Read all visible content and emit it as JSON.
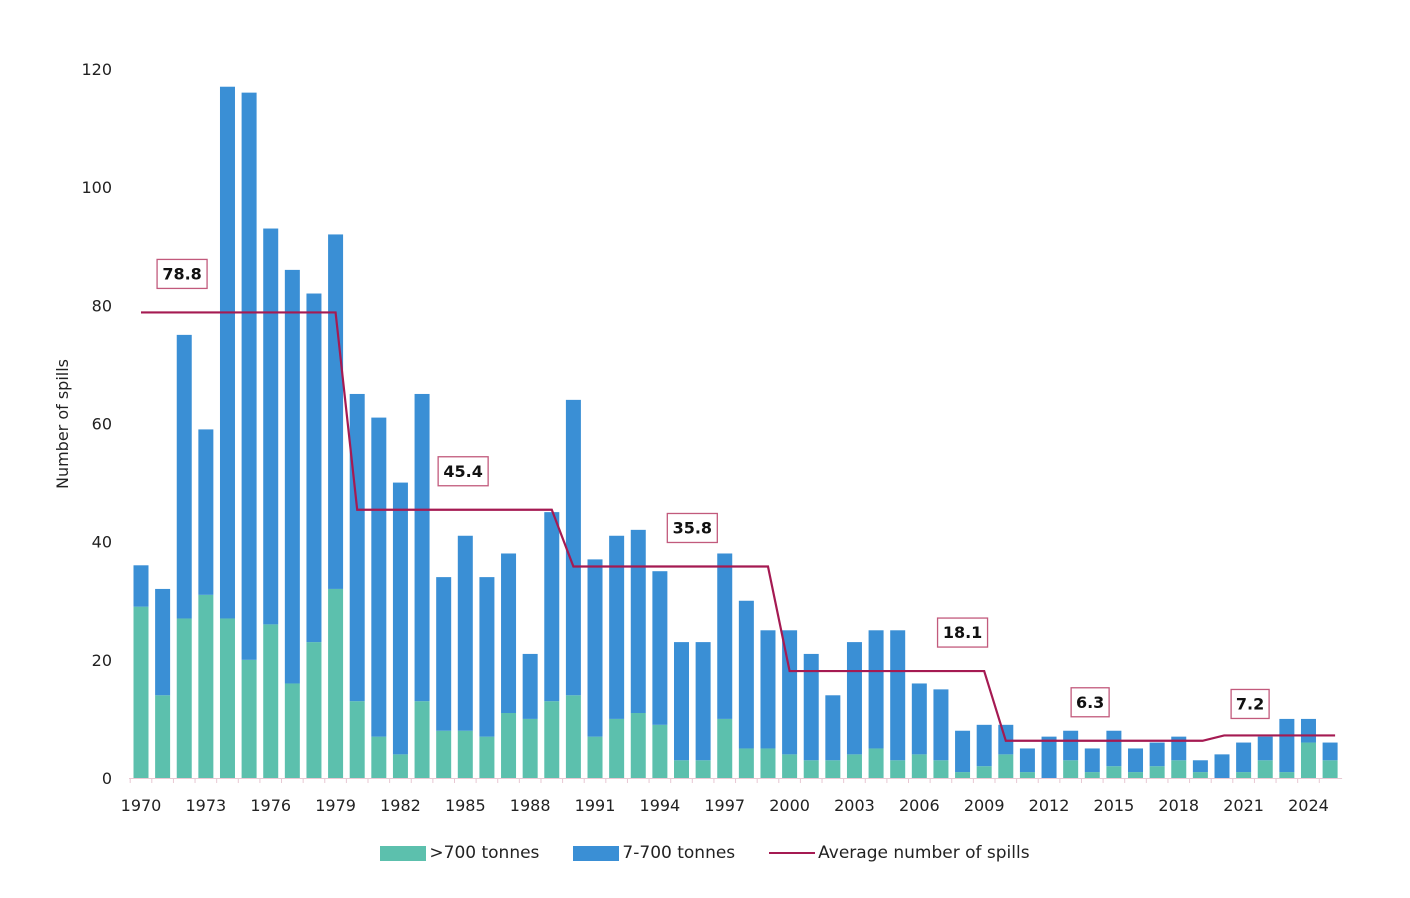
{
  "chart_data": {
    "type": "bar",
    "stacked": true,
    "title": "",
    "xlabel": "",
    "ylabel": "Number of spills",
    "ylim": [
      0,
      120
    ],
    "yticks": [
      0,
      20,
      40,
      60,
      80,
      100,
      120
    ],
    "grid": false,
    "legend_position": "bottom",
    "x": [
      1970,
      1971,
      1972,
      1973,
      1974,
      1975,
      1976,
      1977,
      1978,
      1979,
      1980,
      1981,
      1982,
      1983,
      1984,
      1985,
      1986,
      1987,
      1988,
      1989,
      1990,
      1991,
      1992,
      1993,
      1994,
      1995,
      1996,
      1997,
      1998,
      1999,
      2000,
      2001,
      2002,
      2003,
      2004,
      2005,
      2006,
      2007,
      2008,
      2009,
      2010,
      2011,
      2012,
      2013,
      2014,
      2015,
      2016,
      2017,
      2018,
      2019,
      2020,
      2021,
      2022,
      2023,
      2024,
      2025
    ],
    "xtick_labels": [
      "1970",
      "1973",
      "1976",
      "1979",
      "1982",
      "1985",
      "1988",
      "1991",
      "1994",
      "1997",
      "2000",
      "2003",
      "2006",
      "2009",
      "2012",
      "2015",
      "2018",
      "2021",
      "2024"
    ],
    "series": [
      {
        "name": ">700 tonnes",
        "color": "#5cc0ad",
        "values": [
          29,
          14,
          27,
          31,
          27,
          20,
          26,
          16,
          23,
          32,
          13,
          7,
          4,
          13,
          8,
          8,
          7,
          11,
          10,
          13,
          14,
          7,
          10,
          11,
          9,
          3,
          3,
          10,
          5,
          5,
          4,
          3,
          3,
          4,
          5,
          3,
          4,
          3,
          1,
          2,
          4,
          1,
          0,
          3,
          1,
          2,
          1,
          2,
          3,
          1,
          0,
          1,
          3,
          1,
          6,
          3
        ]
      },
      {
        "name": "7-700 tonnes",
        "color": "#3a8fd5",
        "values": [
          7,
          18,
          48,
          28,
          90,
          96,
          67,
          70,
          59,
          60,
          52,
          54,
          46,
          52,
          26,
          33,
          27,
          27,
          11,
          32,
          50,
          30,
          31,
          31,
          26,
          20,
          20,
          28,
          25,
          20,
          21,
          18,
          11,
          19,
          20,
          22,
          12,
          12,
          7,
          7,
          5,
          4,
          7,
          5,
          4,
          6,
          4,
          4,
          4,
          2,
          4,
          5,
          4,
          9,
          4,
          3
        ]
      }
    ],
    "average_line": {
      "name": "Average number of spills",
      "color": "#a51a52",
      "segments": [
        {
          "from": 1970,
          "to": 1979,
          "value": 78.8,
          "label": "78.8"
        },
        {
          "from": 1980,
          "to": 1989,
          "value": 45.4,
          "label": "45.4"
        },
        {
          "from": 1990,
          "to": 1999,
          "value": 35.8,
          "label": "35.8"
        },
        {
          "from": 2000,
          "to": 2009,
          "value": 18.1,
          "label": "18.1"
        },
        {
          "from": 2010,
          "to": 2019,
          "value": 6.3,
          "label": "6.3"
        },
        {
          "from": 2020,
          "to": 2025,
          "value": 7.2,
          "label": "7.2"
        }
      ]
    }
  }
}
